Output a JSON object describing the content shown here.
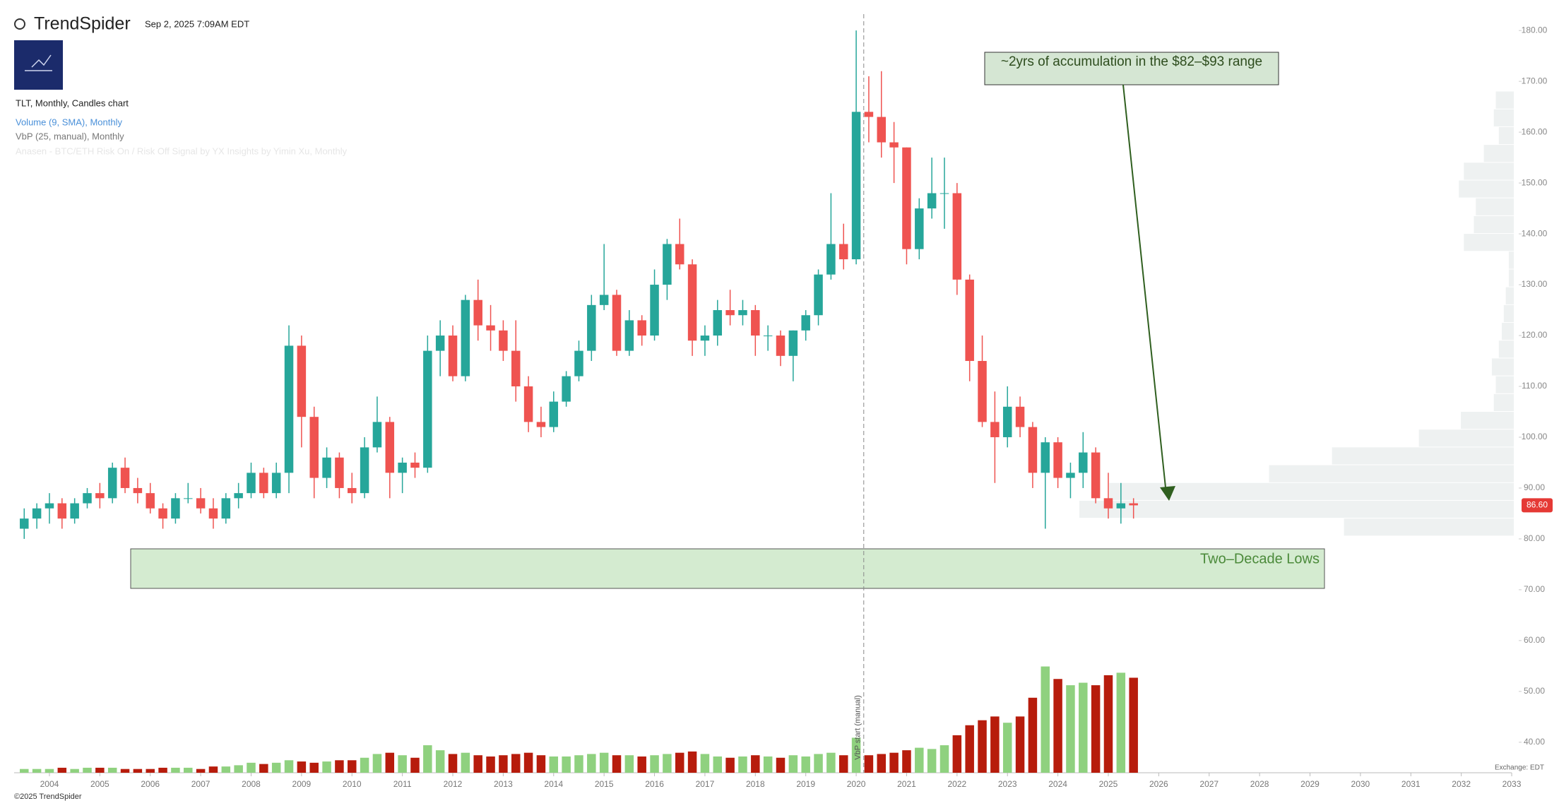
{
  "header": {
    "brand": "TrendSpider",
    "timestamp": "Sep 2, 2025 7:09AM EDT",
    "chart_label": "TLT, Monthly, Candles chart",
    "indicator_volume": "Volume (9, SMA), Monthly",
    "indicator_vbp": "VbP (25, manual), Monthly",
    "indicator_signal": "Anasen - BTC/ETH Risk On / Risk Off Signal by YX Insights by Yimin Xu, Monthly"
  },
  "footer": {
    "copyright": "©2025 TrendSpider",
    "exchange": "Exchange: EDT"
  },
  "chart_data": {
    "type": "candlestick",
    "annotations": {
      "accumulation": "~2yrs of accumulation in the $82–$93 range",
      "lows": "Two–Decade Lows"
    },
    "vbp_start": {
      "x": 2020.15,
      "label": "VbP start (manual)"
    },
    "last_price": {
      "value": 86.6,
      "label": "86.60"
    },
    "up_color": "#26a69a",
    "down_color": "#ef5350",
    "xlim": [
      2003.3,
      2033.7
    ],
    "xticks": [
      2004,
      2005,
      2006,
      2007,
      2008,
      2009,
      2010,
      2011,
      2012,
      2013,
      2014,
      2015,
      2016,
      2017,
      2018,
      2019,
      2020,
      2021,
      2022,
      2023,
      2024,
      2025,
      2026,
      2027,
      2028,
      2029,
      2030,
      2031,
      2032,
      2033
    ],
    "ylim": [
      34,
      186
    ],
    "yticks": [
      {
        "value": 40,
        "label": "40.00"
      },
      {
        "value": 50,
        "label": "50.00"
      },
      {
        "value": 60,
        "label": "60.00"
      },
      {
        "value": 70,
        "label": "70.00"
      },
      {
        "value": 80,
        "label": "80.00"
      },
      {
        "value": 90,
        "label": "90.00"
      },
      {
        "value": 100,
        "label": "100.00"
      },
      {
        "value": 110,
        "label": "110.00"
      },
      {
        "value": 120,
        "label": "120.00"
      },
      {
        "value": 130,
        "label": "130.00"
      },
      {
        "value": 140,
        "label": "140.00"
      },
      {
        "value": 150,
        "label": "150.00"
      },
      {
        "value": 160,
        "label": "160.00"
      },
      {
        "value": 170,
        "label": "170.00"
      },
      {
        "value": 180,
        "label": "180.00"
      }
    ],
    "candles": {
      "x": [
        2003.5,
        2003.75,
        2004,
        2004.25,
        2004.5,
        2004.75,
        2005,
        2005.25,
        2005.5,
        2005.75,
        2006,
        2006.25,
        2006.5,
        2006.75,
        2007,
        2007.25,
        2007.5,
        2007.75,
        2008,
        2008.25,
        2008.5,
        2008.75,
        2009,
        2009.25,
        2009.5,
        2009.75,
        2010,
        2010.25,
        2010.5,
        2010.75,
        2011,
        2011.25,
        2011.5,
        2011.75,
        2012,
        2012.25,
        2012.5,
        2012.75,
        2013,
        2013.25,
        2013.5,
        2013.75,
        2014,
        2014.25,
        2014.5,
        2014.75,
        2015,
        2015.25,
        2015.5,
        2015.75,
        2016,
        2016.25,
        2016.5,
        2016.75,
        2017,
        2017.25,
        2017.5,
        2017.75,
        2018,
        2018.25,
        2018.5,
        2018.75,
        2019,
        2019.25,
        2019.5,
        2019.75,
        2020,
        2020.25,
        2020.5,
        2020.75,
        2021,
        2021.25,
        2021.5,
        2021.75,
        2022,
        2022.25,
        2022.5,
        2022.75,
        2023,
        2023.25,
        2023.5,
        2023.75,
        2024,
        2024.25,
        2024.5,
        2024.75,
        2025,
        2025.25,
        2025.5
      ],
      "open": [
        82,
        84,
        86,
        87,
        84,
        87,
        89,
        88,
        94,
        90,
        89,
        86,
        84,
        88,
        88,
        86,
        84,
        88,
        89,
        93,
        89,
        93,
        118,
        104,
        92,
        96,
        90,
        89,
        98,
        103,
        93,
        95,
        94,
        117,
        120,
        112,
        127,
        122,
        121,
        117,
        110,
        103,
        102,
        107,
        112,
        117,
        126,
        128,
        117,
        123,
        120,
        130,
        138,
        134,
        119,
        120,
        125,
        124,
        125,
        120,
        120,
        116,
        121,
        124,
        132,
        138,
        135,
        164,
        163,
        158,
        157,
        137,
        145,
        148,
        148,
        131,
        115,
        103,
        100,
        106,
        102,
        93,
        99,
        92,
        93,
        97,
        88,
        86,
        87
      ],
      "high": [
        86,
        87,
        89,
        88,
        88,
        90,
        91,
        95,
        96,
        92,
        91,
        87,
        89,
        91,
        90,
        88,
        89,
        91,
        95,
        94,
        95,
        122,
        120,
        106,
        98,
        97,
        93,
        100,
        108,
        104,
        96,
        97,
        120,
        123,
        122,
        128,
        131,
        126,
        123,
        123,
        112,
        106,
        109,
        113,
        119,
        128,
        138,
        129,
        125,
        124,
        133,
        139,
        143,
        135,
        122,
        127,
        129,
        127,
        126,
        122,
        121,
        121,
        125,
        133,
        148,
        142,
        180,
        171,
        172,
        162,
        157,
        147,
        155,
        155,
        150,
        132,
        120,
        109,
        110,
        108,
        103,
        100,
        100,
        95,
        101,
        98,
        93,
        91,
        88
      ],
      "low": [
        80,
        82,
        83,
        82,
        83,
        86,
        86,
        87,
        89,
        87,
        85,
        82,
        83,
        87,
        85,
        82,
        83,
        86,
        88,
        88,
        88,
        89,
        98,
        88,
        90,
        88,
        87,
        88,
        97,
        88,
        89,
        92,
        93,
        112,
        111,
        111,
        119,
        117,
        115,
        107,
        101,
        100,
        101,
        106,
        111,
        115,
        125,
        116,
        116,
        118,
        119,
        127,
        133,
        116,
        116,
        118,
        122,
        122,
        116,
        117,
        114,
        111,
        119,
        122,
        131,
        133,
        134,
        158,
        155,
        150,
        134,
        135,
        143,
        141,
        128,
        111,
        102,
        91,
        98,
        100,
        90,
        82,
        90,
        88,
        90,
        87,
        84,
        83,
        84
      ],
      "close": [
        84,
        86,
        87,
        84,
        87,
        89,
        88,
        94,
        90,
        89,
        86,
        84,
        88,
        88,
        86,
        84,
        88,
        89,
        93,
        89,
        93,
        118,
        104,
        92,
        96,
        90,
        89,
        98,
        103,
        93,
        95,
        94,
        117,
        120,
        112,
        127,
        122,
        121,
        117,
        110,
        103,
        102,
        107,
        112,
        117,
        126,
        128,
        117,
        123,
        120,
        130,
        138,
        134,
        119,
        120,
        125,
        124,
        125,
        120,
        120,
        116,
        121,
        124,
        132,
        138,
        135,
        164,
        163,
        158,
        157,
        137,
        145,
        148,
        148,
        131,
        115,
        103,
        100,
        106,
        102,
        93,
        99,
        92,
        93,
        97,
        88,
        86,
        87,
        86.6
      ]
    },
    "volume": {
      "ylim": [
        0,
        100
      ],
      "up_color": "#8fd17f",
      "down_color": "#b71c0c",
      "values": [
        3,
        3,
        3,
        4,
        3,
        4,
        4,
        4,
        3,
        3,
        3,
        4,
        4,
        4,
        3,
        5,
        5,
        6,
        8,
        7,
        8,
        10,
        9,
        8,
        9,
        10,
        10,
        12,
        15,
        16,
        14,
        12,
        22,
        18,
        15,
        16,
        14,
        13,
        14,
        15,
        16,
        14,
        13,
        13,
        14,
        15,
        16,
        14,
        14,
        13,
        14,
        15,
        16,
        17,
        15,
        13,
        12,
        13,
        14,
        13,
        12,
        14,
        13,
        15,
        16,
        14,
        28,
        14,
        15,
        16,
        18,
        20,
        19,
        22,
        30,
        38,
        42,
        45,
        40,
        45,
        60,
        85,
        75,
        70,
        72,
        70,
        78,
        80,
        76
      ]
    },
    "vbp": {
      "xlim": [
        0,
        500
      ],
      "color": "#eef1f1",
      "bins": [
        80.5,
        84,
        87.5,
        91,
        94.5,
        98,
        101.5,
        105,
        108.5,
        112,
        115.5,
        119,
        122.5,
        126,
        129.5,
        133,
        136.5,
        140,
        143.5,
        147,
        150.5,
        154,
        157.5,
        161,
        164.5,
        168
      ],
      "values": [
        170,
        435,
        405,
        245,
        182,
        95,
        53,
        20,
        18,
        22,
        15,
        12,
        10,
        8,
        5,
        5,
        50,
        40,
        38,
        55,
        50,
        30,
        15,
        20,
        18
      ]
    }
  }
}
